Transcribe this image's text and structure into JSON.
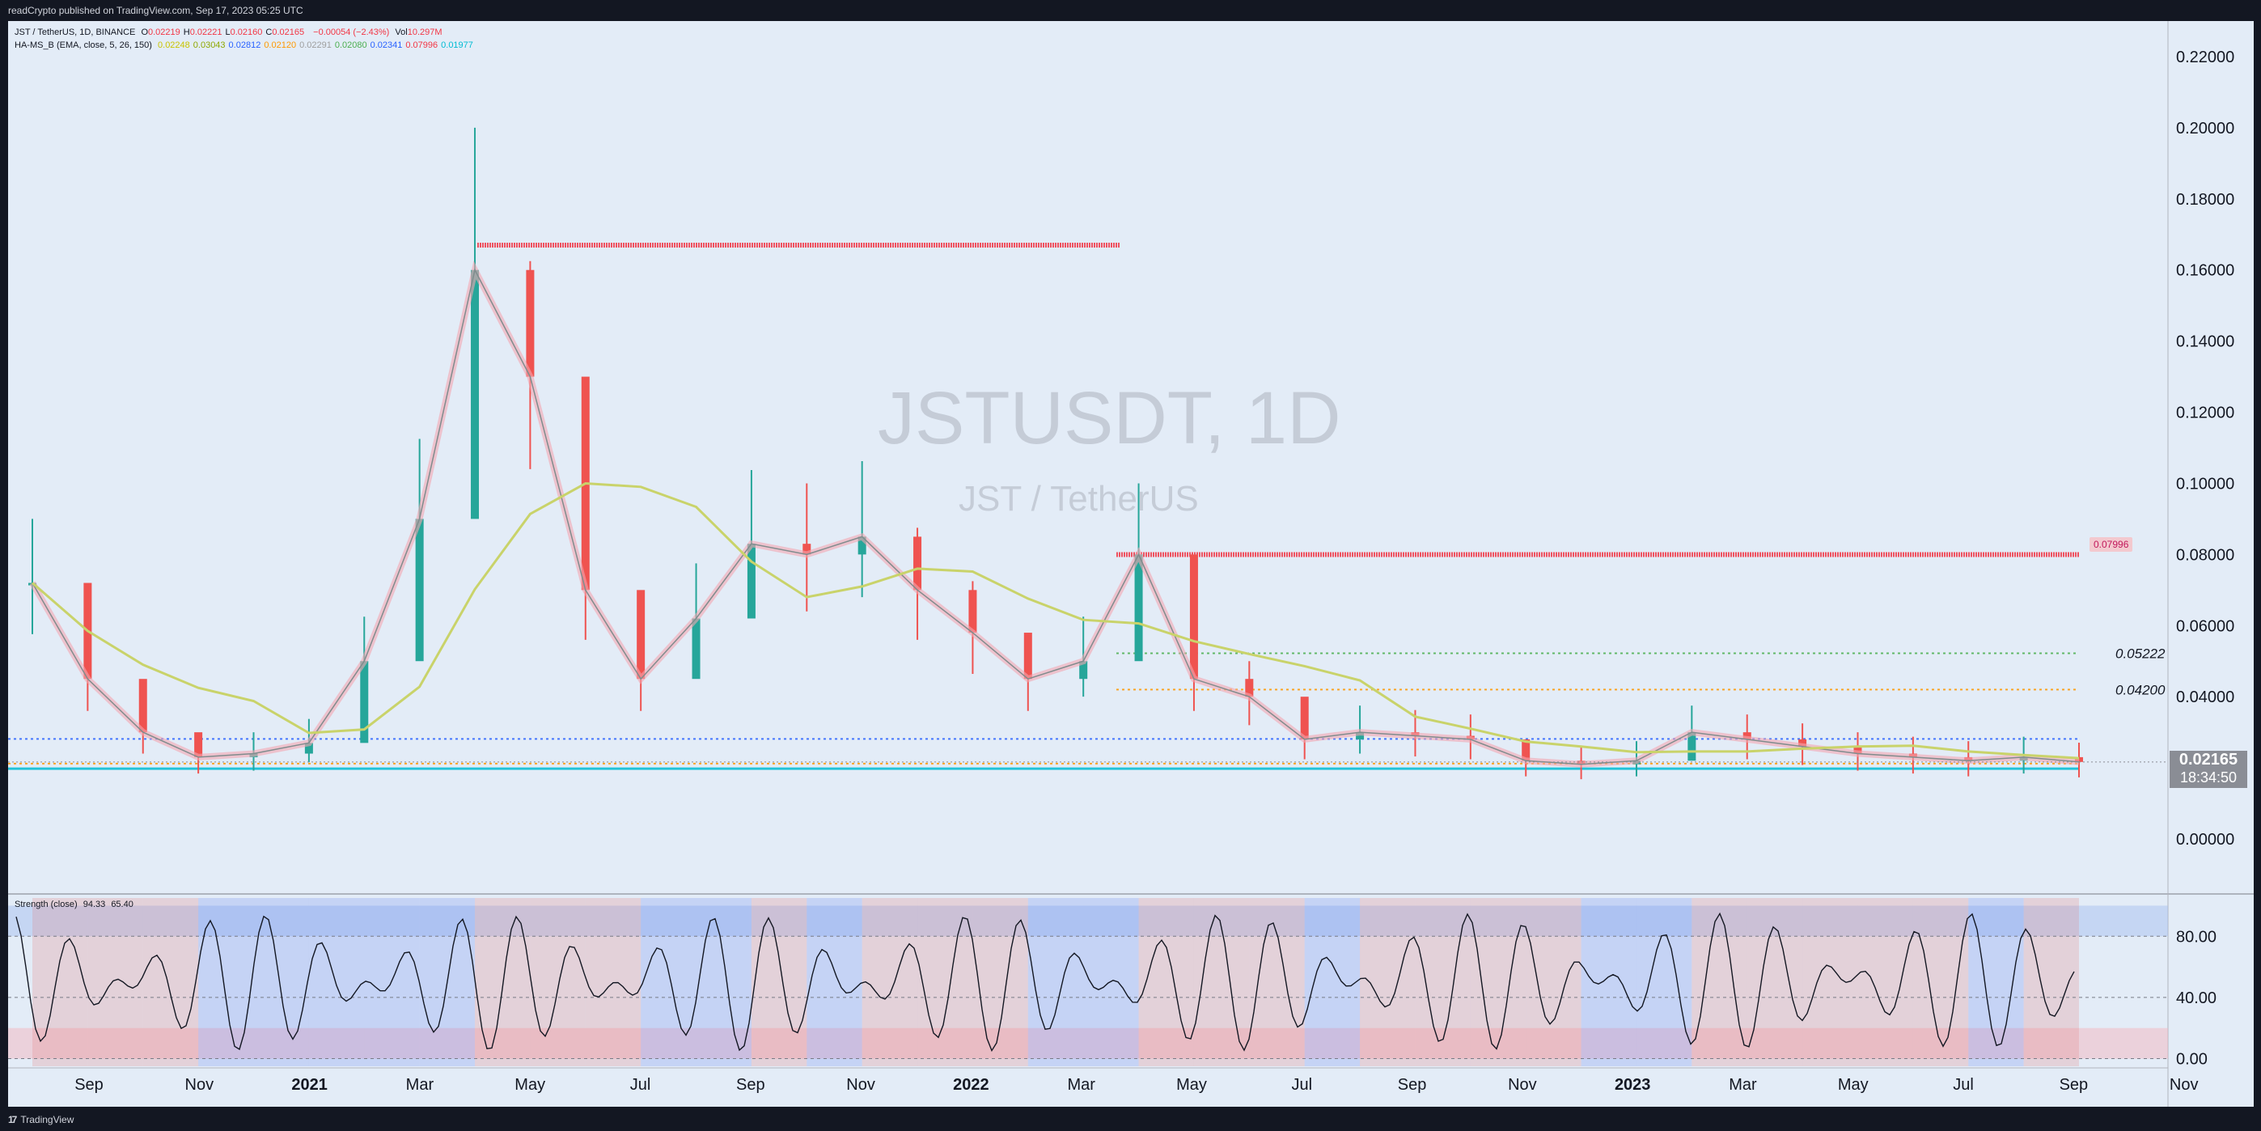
{
  "header": {
    "published": "readCrypto published on TradingView.com, Sep 17, 2023 05:25 UTC"
  },
  "footer": {
    "brand": "TradingView"
  },
  "legend": {
    "symbol_line": "JST / TetherUS, 1D, BINANCE",
    "ohlc": [
      {
        "label": "O",
        "value": "0.02219"
      },
      {
        "label": "H",
        "value": "0.02221"
      },
      {
        "label": "L",
        "value": "0.02160"
      },
      {
        "label": "C",
        "value": "0.02165"
      }
    ],
    "change": "−0.00054 (−2.43%)",
    "vol_label": "Vol",
    "vol_value": "10.297M",
    "indicator_name": "HA-MS_B (EMA, close, 5, 26, 150)",
    "indicator_values": [
      {
        "value": "0.02248",
        "color": "#c9c400"
      },
      {
        "value": "0.03043",
        "color": "#8fa800"
      },
      {
        "value": "0.02812",
        "color": "#2962ff"
      },
      {
        "value": "0.02120",
        "color": "#ff9800"
      },
      {
        "value": "0.02291",
        "color": "#9e9e9e"
      },
      {
        "value": "0.02080",
        "color": "#4caf50"
      },
      {
        "value": "0.02341",
        "color": "#2962ff"
      },
      {
        "value": "0.07996",
        "color": "#f23645"
      },
      {
        "value": "0.01977",
        "color": "#00bcd4"
      }
    ],
    "strength_name": "Strength (close)",
    "strength_values": [
      "94.33",
      "65.40"
    ]
  },
  "watermark": {
    "symbol": "JSTUSDT, 1D",
    "name": "JST / TetherUS"
  },
  "price_tag": {
    "price": "0.02165",
    "countdown": "18:34:50"
  },
  "red_tag": "0.07996",
  "level_labels": [
    {
      "value": 0.05222,
      "text": "0.05222"
    },
    {
      "value": 0.042,
      "text": "0.04200"
    }
  ],
  "chart_data": {
    "type": "line",
    "title": "JST / TetherUS, 1D, BINANCE",
    "y_axis_ticks": [
      "0.22000",
      "0.20000",
      "0.18000",
      "0.16000",
      "0.14000",
      "0.12000",
      "0.10000",
      "0.08000",
      "0.06000",
      "0.04000",
      "0.00000"
    ],
    "ylim": [
      0,
      0.22
    ],
    "x_tick_labels": [
      "Sep",
      "Nov",
      "2021",
      "Mar",
      "May",
      "Jul",
      "Sep",
      "Nov",
      "2022",
      "Mar",
      "May",
      "Jul",
      "Sep",
      "Nov",
      "2023",
      "Mar",
      "May",
      "Jul",
      "Sep",
      "Nov"
    ],
    "x_tick_bold": [
      "2021",
      "2022",
      "2023"
    ],
    "price_series": {
      "name": "JST / TetherUS",
      "x": [
        "2020-08",
        "2020-09",
        "2020-10",
        "2020-11",
        "2020-12",
        "2021-01",
        "2021-02",
        "2021-03",
        "2021-04",
        "2021-05",
        "2021-06",
        "2021-07",
        "2021-08",
        "2021-09",
        "2021-10",
        "2021-11",
        "2021-12",
        "2022-01",
        "2022-02",
        "2022-03",
        "2022-04",
        "2022-05",
        "2022-06",
        "2022-07",
        "2022-08",
        "2022-09",
        "2022-10",
        "2022-11",
        "2022-12",
        "2023-01",
        "2023-02",
        "2023-03",
        "2023-04",
        "2023-05",
        "2023-06",
        "2023-07",
        "2023-08",
        "2023-09"
      ],
      "values": [
        0.072,
        0.045,
        0.03,
        0.023,
        0.024,
        0.027,
        0.05,
        0.09,
        0.16,
        0.13,
        0.07,
        0.045,
        0.062,
        0.083,
        0.08,
        0.085,
        0.07,
        0.058,
        0.045,
        0.05,
        0.08,
        0.045,
        0.04,
        0.028,
        0.03,
        0.029,
        0.028,
        0.022,
        0.021,
        0.022,
        0.03,
        0.028,
        0.026,
        0.024,
        0.023,
        0.022,
        0.023,
        0.02165
      ]
    },
    "horizontal_levels": [
      {
        "name": "resistance-red-high",
        "y": 0.167,
        "color": "#f23645"
      },
      {
        "name": "resistance-red",
        "y": 0.07996,
        "color": "#f23645"
      },
      {
        "name": "support-blue",
        "y": 0.02812,
        "color": "#2962ff"
      },
      {
        "name": "support-orange",
        "y": 0.0212,
        "color": "#ff9800"
      },
      {
        "name": "support-cyan",
        "y": 0.01977,
        "color": "#00bcd4"
      },
      {
        "name": "level-green-dotted",
        "y": 0.05222,
        "color": "#4caf50"
      },
      {
        "name": "level-orange-dotted",
        "y": 0.042,
        "color": "#ff9800"
      }
    ],
    "strength_panel": {
      "name": "Strength (close)",
      "y_ticks": [
        "80.00",
        "40.00",
        "0.00"
      ],
      "ylim": [
        -5,
        105
      ]
    }
  }
}
